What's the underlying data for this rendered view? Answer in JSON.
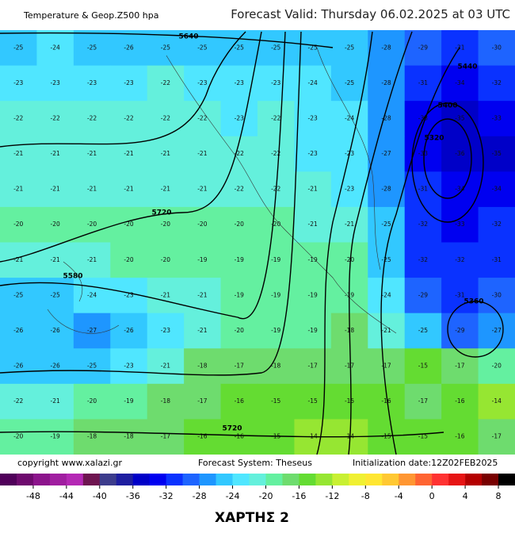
{
  "header": {
    "left": "Temperature & Geop.Z500 hpa",
    "right": "Forecast Valid:  Thursday 06.02.2025 at 03 UTC"
  },
  "footer": {
    "copyright": "copyright www.xalazi.gr",
    "system": "Forecast System: Theseus",
    "init": "Initialization date:12Z02FEB2025"
  },
  "title": "ΧΑΡΤΗΣ 2",
  "colorbar": {
    "range": [
      -52,
      10
    ],
    "colors": [
      "#50005a",
      "#6e0a6e",
      "#8c148c",
      "#a01ea0",
      "#b428b4",
      "#6e1450",
      "#3c3c8c",
      "#1e1ea0",
      "#0000c8",
      "#0000f0",
      "#0a32ff",
      "#1e64ff",
      "#1e96ff",
      "#32c8ff",
      "#50e6ff",
      "#64f0dc",
      "#64f0a0",
      "#6edc6e",
      "#64dc32",
      "#96e632",
      "#c8f032",
      "#f0f032",
      "#ffe632",
      "#ffc832",
      "#ff9632",
      "#ff6432",
      "#ff3232",
      "#e61414",
      "#b40000",
      "#780000",
      "#000000"
    ],
    "ticks": [
      -48,
      -44,
      -40,
      -36,
      -32,
      -28,
      -24,
      -20,
      -16,
      -12,
      -8,
      -4,
      0,
      4,
      8
    ]
  },
  "temperature_grid": [
    [
      -25,
      -24,
      -25,
      -26,
      -25,
      -25,
      -25,
      -25,
      -25,
      -25,
      -28,
      -29,
      -31,
      -30
    ],
    [
      -23,
      -23,
      -23,
      -23,
      -22,
      -23,
      -23,
      -23,
      -24,
      -25,
      -28,
      -31,
      -34,
      -32
    ],
    [
      -22,
      -22,
      -22,
      -22,
      -22,
      -22,
      -23,
      -22,
      -23,
      -24,
      -28,
      -33,
      -35,
      -33
    ],
    [
      -21,
      -21,
      -21,
      -21,
      -21,
      -21,
      -22,
      -22,
      -23,
      -23,
      -27,
      -33,
      -36,
      -35
    ],
    [
      -21,
      -21,
      -21,
      -21,
      -21,
      -21,
      -22,
      -22,
      -21,
      -23,
      -28,
      -31,
      -34,
      -34
    ],
    [
      -20,
      -20,
      -20,
      -20,
      -20,
      -20,
      -20,
      -20,
      -21,
      -21,
      -25,
      -32,
      -33,
      -32
    ],
    [
      -21,
      -21,
      -21,
      -20,
      -20,
      -19,
      -19,
      -19,
      -19,
      -20,
      -25,
      -32,
      -32,
      -31
    ],
    [
      -25,
      -25,
      -24,
      -23,
      -21,
      -21,
      -19,
      -19,
      -19,
      -19,
      -24,
      -29,
      -31,
      -30
    ],
    [
      -26,
      -26,
      -27,
      -26,
      -23,
      -21,
      -20,
      -19,
      -19,
      -18,
      -21,
      -25,
      -29,
      -27
    ],
    [
      -26,
      -26,
      -25,
      -23,
      -21,
      -18,
      -17,
      -18,
      -17,
      -17,
      -17,
      -15,
      -17,
      -20
    ],
    [
      -22,
      -21,
      -20,
      -19,
      -18,
      -17,
      -16,
      -15,
      -15,
      -15,
      -16,
      -17,
      -16,
      -14
    ],
    [
      -20,
      -19,
      -18,
      -18,
      -17,
      -16,
      -16,
      -15,
      -14,
      -14,
      -15,
      -15,
      -16,
      -17
    ]
  ],
  "contour_labels": [
    "5640",
    "5720",
    "5580",
    "5720",
    "5440",
    "5400",
    "5320",
    "5360"
  ]
}
